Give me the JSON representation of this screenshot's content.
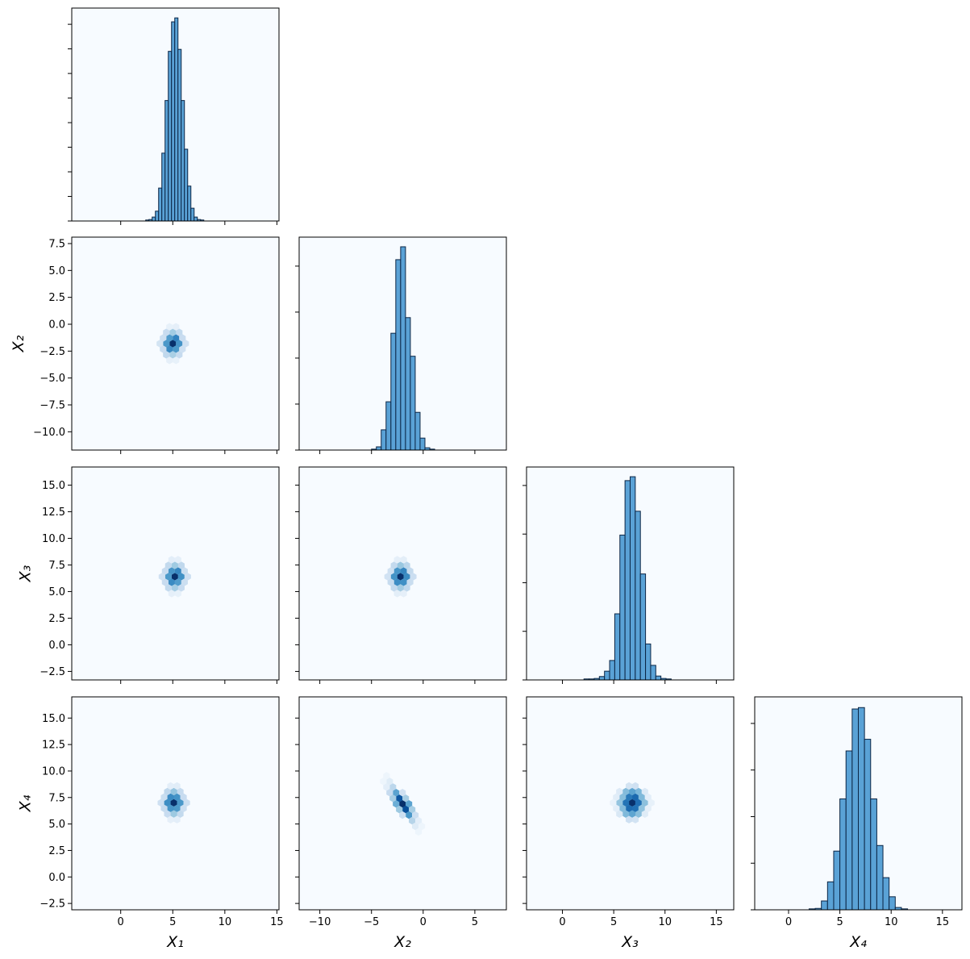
{
  "chart_data": [
    {
      "type": "histogram",
      "bins": [
        2.4,
        2.71,
        3.02,
        3.33,
        3.64,
        3.95,
        4.26,
        4.57,
        4.88,
        5.19,
        5.5,
        5.81,
        6.12,
        6.43,
        6.74,
        7.05,
        7.36,
        7.67,
        7.98
      ],
      "values": [
        0.002,
        0.003,
        0.008,
        0.02,
        0.067,
        0.138,
        0.245,
        0.345,
        0.405,
        0.413,
        0.349,
        0.245,
        0.146,
        0.071,
        0.026,
        0.008,
        0.003,
        0.002
      ],
      "color": "#5aa2d6",
      "edgecolor": "#0b2545",
      "background": "#f7fbff",
      "xlim": [
        -4.7,
        15.2
      ],
      "xticks": [
        0,
        5,
        10,
        15
      ],
      "xticklabels": false,
      "ylim": [
        0,
        0.433
      ],
      "yticks": [
        0,
        0.05,
        0.1,
        0.15,
        0.2,
        0.25,
        0.3,
        0.35,
        0.4
      ],
      "yticklabels": false
    },
    {
      "type": "hexbin",
      "cmap": "Blues",
      "background": "#f7fbff",
      "x": [
        5.0,
        5.62,
        4.38,
        5.31,
        4.69,
        5.31,
        4.69,
        6.24,
        3.76,
        5.93,
        4.07,
        5.93,
        4.07,
        5.62,
        5.0,
        4.38,
        5.62,
        5.0,
        4.38,
        5.31,
        4.69,
        5.31,
        4.69
      ],
      "y": [
        -1.8,
        -1.8,
        -1.8,
        -1.28,
        -1.28,
        -2.32,
        -2.32,
        -1.8,
        -1.8,
        -1.28,
        -1.28,
        -2.32,
        -2.32,
        -0.76,
        -0.76,
        -0.76,
        -2.84,
        -2.84,
        -2.84,
        -0.24,
        -0.24,
        -3.36,
        -3.36
      ],
      "counts": [
        100,
        62,
        60,
        68,
        58,
        60,
        66,
        20,
        18,
        24,
        22,
        21,
        25,
        26,
        36,
        24,
        25,
        34,
        27,
        9,
        8,
        8,
        9
      ],
      "xlim": [
        -4.7,
        15.2
      ],
      "xticks": [
        0,
        5,
        10,
        15
      ],
      "xticklabels": false,
      "ylim": [
        -11.7,
        8.1
      ],
      "yticks": [
        {
          "value": -10,
          "label": "−10.0"
        },
        {
          "value": -7.5,
          "label": "−7.5"
        },
        {
          "value": -5,
          "label": "−5.0"
        },
        {
          "value": -2.5,
          "label": "−2.5"
        },
        {
          "value": 0,
          "label": "0.0"
        },
        2.5,
        {
          "value": 5,
          "label": "5.0"
        },
        7.5
      ],
      "yticklabels": true,
      "ylabel": "X₂"
    },
    {
      "type": "histogram",
      "bins": [
        -5.0,
        -4.53,
        -4.06,
        -3.59,
        -3.12,
        -2.65,
        -2.18,
        -1.71,
        -1.24,
        -0.77,
        -0.3,
        0.17,
        0.64,
        1.11
      ],
      "values": [
        0.002,
        0.007,
        0.044,
        0.105,
        0.254,
        0.414,
        0.442,
        0.288,
        0.204,
        0.082,
        0.026,
        0.005,
        0.002
      ],
      "color": "#5aa2d6",
      "edgecolor": "#0b2545",
      "background": "#f7fbff",
      "xlim": [
        -12.0,
        8.05
      ],
      "xticks": [
        {
          "value": -10,
          "label": "−10"
        },
        {
          "value": -5,
          "label": "−5"
        },
        0,
        5
      ],
      "xticklabels": false,
      "ylim": [
        0,
        0.463
      ],
      "yticks": [
        0,
        0.1,
        0.2,
        0.3,
        0.4
      ],
      "yticklabels": false
    },
    {
      "type": "hexbin",
      "cmap": "Blues",
      "background": "#f7fbff",
      "x": [
        5.2,
        5.82,
        4.58,
        5.51,
        4.89,
        5.51,
        4.89,
        6.44,
        3.96,
        6.13,
        4.27,
        6.13,
        4.27,
        5.82,
        5.2,
        4.58,
        5.82,
        5.2,
        4.58,
        5.51,
        4.89,
        5.51,
        4.89
      ],
      "y": [
        6.4,
        6.4,
        6.4,
        6.93,
        6.93,
        5.87,
        5.87,
        6.4,
        6.4,
        6.93,
        6.93,
        5.87,
        5.87,
        7.46,
        7.46,
        7.46,
        5.34,
        5.34,
        5.34,
        7.99,
        7.99,
        4.81,
        4.81
      ],
      "counts": [
        100,
        63,
        59,
        67,
        61,
        58,
        65,
        21,
        20,
        23,
        24,
        22,
        24,
        27,
        37,
        26,
        24,
        35,
        26,
        9,
        10,
        8,
        9
      ],
      "xlim": [
        -4.7,
        15.2
      ],
      "xticks": [
        0,
        5,
        10,
        15
      ],
      "xticklabels": false,
      "ylim": [
        -3.3,
        16.7
      ],
      "yticks": [
        {
          "value": -2.5,
          "label": "−2.5"
        },
        {
          "value": 0,
          "label": "0.0"
        },
        2.5,
        {
          "value": 5,
          "label": "5.0"
        },
        7.5,
        {
          "value": 10,
          "label": "10.0"
        },
        12.5,
        {
          "value": 15,
          "label": "15.0"
        }
      ],
      "yticklabels": true,
      "ylabel": "X₃"
    },
    {
      "type": "hexbin",
      "cmap": "Blues",
      "background": "#f7fbff",
      "x": [
        -2.2,
        -1.58,
        -2.82,
        -1.89,
        -2.51,
        -1.89,
        -2.51,
        -0.96,
        -3.44,
        -1.27,
        -3.13,
        -1.27,
        -3.13,
        -1.58,
        -2.2,
        -2.82,
        -1.58,
        -2.2,
        -2.82,
        -1.89,
        -2.51,
        -1.89,
        -2.51
      ],
      "y": [
        6.4,
        6.4,
        6.4,
        6.93,
        6.93,
        5.87,
        5.87,
        6.4,
        6.4,
        6.93,
        6.93,
        5.87,
        5.87,
        7.46,
        7.46,
        7.46,
        5.34,
        5.34,
        5.34,
        7.99,
        7.99,
        4.81,
        4.81
      ],
      "counts": [
        98,
        64,
        61,
        66,
        60,
        62,
        63,
        22,
        19,
        25,
        20,
        23,
        24,
        28,
        38,
        25,
        26,
        35,
        25,
        10,
        9,
        9,
        10
      ],
      "xlim": [
        -12.0,
        8.05
      ],
      "xticks": [
        {
          "value": -10,
          "label": "−10"
        },
        {
          "value": -5,
          "label": "−5"
        },
        0,
        5
      ],
      "xticklabels": false,
      "ylim": [
        -3.3,
        16.7
      ],
      "yticks": [
        -2.5,
        0,
        2.5,
        5,
        7.5,
        10,
        12.5,
        15
      ],
      "yticklabels": false
    },
    {
      "type": "histogram",
      "bins": [
        2.1,
        2.6,
        3.1,
        3.6,
        4.1,
        4.6,
        5.1,
        5.6,
        6.1,
        6.6,
        7.1,
        7.6,
        8.1,
        8.6,
        9.1,
        9.6,
        10.1,
        10.6
      ],
      "values": [
        0.002,
        0.002,
        0.003,
        0.007,
        0.018,
        0.04,
        0.136,
        0.298,
        0.41,
        0.418,
        0.347,
        0.218,
        0.074,
        0.03,
        0.008,
        0.003,
        0.002
      ],
      "color": "#5aa2d6",
      "edgecolor": "#0b2545",
      "background": "#f7fbff",
      "xlim": [
        -3.5,
        16.7
      ],
      "xticks": [
        0,
        5,
        10,
        15
      ],
      "xticklabels": false,
      "ylim": [
        0,
        0.438
      ],
      "yticks": [
        0,
        0.1,
        0.2,
        0.3,
        0.4
      ],
      "yticklabels": false
    },
    {
      "type": "hexbin",
      "cmap": "Blues",
      "background": "#f7fbff",
      "x": [
        5.1,
        5.72,
        4.48,
        5.41,
        4.79,
        5.41,
        4.79,
        6.34,
        3.86,
        6.03,
        4.17,
        6.03,
        4.17,
        5.72,
        5.1,
        4.48,
        5.72,
        5.1,
        4.48,
        5.41,
        4.79,
        5.41,
        4.79
      ],
      "y": [
        7.0,
        7.0,
        7.0,
        7.53,
        7.53,
        6.47,
        6.47,
        7.0,
        7.0,
        7.53,
        7.53,
        6.47,
        6.47,
        8.06,
        8.06,
        8.06,
        5.94,
        5.94,
        5.94,
        8.59,
        8.59,
        5.41,
        5.41
      ],
      "counts": [
        100,
        60,
        64,
        62,
        65,
        59,
        61,
        22,
        21,
        24,
        23,
        22,
        25,
        25,
        40,
        27,
        26,
        38,
        24,
        11,
        10,
        10,
        9
      ],
      "xlim": [
        -4.7,
        15.2
      ],
      "xticks": [
        0,
        5,
        10,
        15
      ],
      "xticklabels": true,
      "ylim": [
        -3.1,
        17.0
      ],
      "yticks": [
        {
          "value": -2.5,
          "label": "−2.5"
        },
        {
          "value": 0,
          "label": "0.0"
        },
        2.5,
        {
          "value": 5,
          "label": "5.0"
        },
        7.5,
        {
          "value": 10,
          "label": "10.0"
        },
        12.5,
        {
          "value": 15,
          "label": "15.0"
        }
      ],
      "yticklabels": true,
      "xlabel": "X₁",
      "ylabel": "X₄"
    },
    {
      "type": "hexbin",
      "cmap": "Blues",
      "background": "#f7fbff",
      "x": [
        -2.0,
        -1.38,
        -2.62,
        -2.31,
        -1.69,
        -2.93,
        -1.69,
        -1.07,
        -2.31,
        -2.62,
        -3.24,
        -2.0,
        -1.38,
        -0.76,
        -2.0,
        -2.93,
        -3.55,
        -1.07,
        -0.45,
        -3.24,
        -3.86,
        -0.76,
        -0.14,
        -3.55,
        -0.45
      ],
      "y": [
        6.9,
        6.9,
        6.9,
        7.43,
        7.43,
        7.43,
        6.37,
        6.37,
        6.37,
        7.96,
        7.96,
        7.96,
        5.84,
        5.84,
        5.84,
        8.49,
        8.49,
        5.31,
        5.31,
        9.02,
        9.02,
        4.78,
        4.78,
        9.55,
        4.25
      ],
      "counts": [
        100,
        55,
        50,
        85,
        35,
        35,
        88,
        35,
        38,
        55,
        25,
        20,
        60,
        22,
        22,
        28,
        10,
        30,
        10,
        12,
        5,
        12,
        5,
        5,
        5
      ],
      "xlim": [
        -12.0,
        8.05
      ],
      "xticks": [
        {
          "value": -10,
          "label": "−10"
        },
        {
          "value": -5,
          "label": "−5"
        },
        0,
        5
      ],
      "xticklabels": true,
      "ylim": [
        -3.1,
        17.0
      ],
      "yticks": [
        -2.5,
        0,
        2.5,
        5,
        7.5,
        10,
        12.5,
        15
      ],
      "yticklabels": false,
      "xlabel": "X₂"
    },
    {
      "type": "hexbin",
      "cmap": "Blues",
      "background": "#f7fbff",
      "x": [
        6.8,
        7.42,
        6.18,
        7.11,
        6.49,
        7.11,
        6.49,
        8.04,
        5.56,
        7.73,
        5.87,
        7.73,
        5.87,
        7.42,
        6.8,
        6.18,
        7.42,
        6.8,
        6.18,
        7.11,
        6.49,
        7.11,
        6.49,
        8.35,
        5.25,
        8.35,
        5.25,
        8.66,
        4.94,
        8.04,
        5.56,
        8.04,
        5.56
      ],
      "y": [
        7.0,
        7.0,
        7.0,
        7.53,
        7.53,
        6.47,
        6.47,
        7.0,
        7.0,
        7.53,
        7.53,
        6.47,
        6.47,
        8.06,
        8.06,
        8.06,
        5.94,
        5.94,
        5.94,
        8.59,
        8.59,
        5.41,
        5.41,
        7.53,
        7.53,
        6.47,
        6.47,
        7.0,
        7.0,
        8.06,
        8.06,
        5.94,
        5.94
      ],
      "counts": [
        100,
        76,
        74,
        78,
        72,
        75,
        77,
        42,
        40,
        45,
        43,
        41,
        44,
        46,
        55,
        44,
        43,
        54,
        45,
        20,
        18,
        19,
        21,
        10,
        11,
        9,
        10,
        8,
        7,
        14,
        13,
        12,
        15
      ],
      "xlim": [
        -3.5,
        16.7
      ],
      "xticks": [
        0,
        5,
        10,
        15
      ],
      "xticklabels": true,
      "ylim": [
        -3.1,
        17.0
      ],
      "yticks": [
        -2.5,
        0,
        2.5,
        5,
        7.5,
        10,
        12.5,
        15
      ],
      "yticklabels": false,
      "xlabel": "X₃"
    },
    {
      "type": "histogram",
      "bins": [
        2.0,
        2.6,
        3.2,
        3.8,
        4.4,
        5.0,
        5.6,
        6.2,
        6.8,
        7.4,
        8.0,
        8.6,
        9.2,
        9.8,
        10.4,
        11.0,
        11.6
      ],
      "values": [
        0.002,
        0.003,
        0.019,
        0.06,
        0.126,
        0.238,
        0.341,
        0.431,
        0.434,
        0.366,
        0.238,
        0.138,
        0.069,
        0.028,
        0.005,
        0.002
      ],
      "color": "#5aa2d6",
      "edgecolor": "#0b2545",
      "background": "#f7fbff",
      "xlim": [
        -3.3,
        16.9
      ],
      "xticks": [
        0,
        5,
        10,
        15
      ],
      "xticklabels": true,
      "ylim": [
        0,
        0.457
      ],
      "yticks": [
        0,
        0.1,
        0.2,
        0.3,
        0.4
      ],
      "yticklabels": false,
      "xlabel": "X₄"
    }
  ]
}
